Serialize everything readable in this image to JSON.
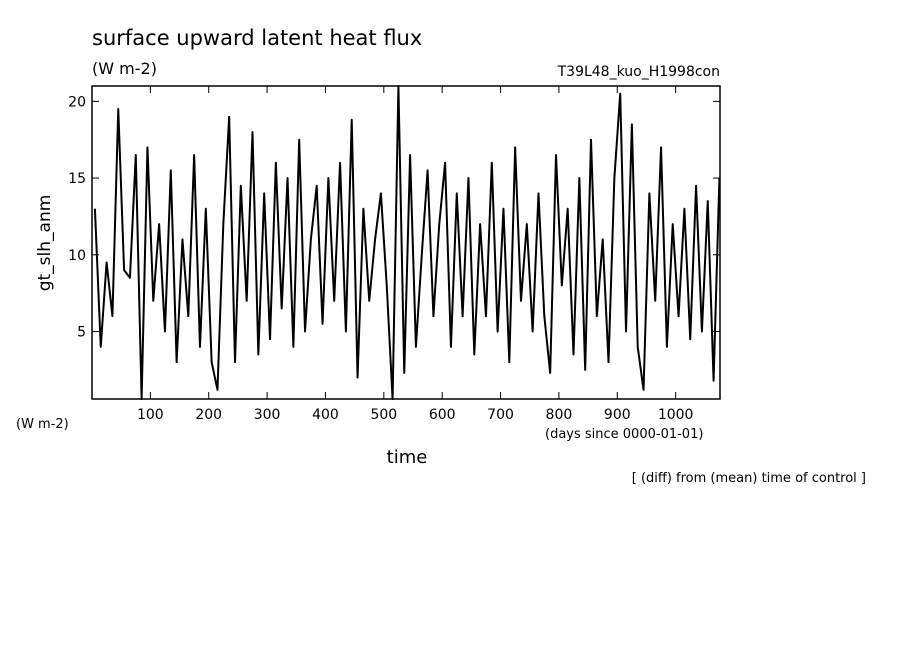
{
  "chart_data": {
    "type": "line",
    "title": "surface upward latent heat flux",
    "subtitle": "(W m-2)",
    "run_label": "T39L48_kuo_H1998con",
    "y_label": "gt_slh_anm",
    "y_units": "(W m-2)",
    "x_units": "(days since 0000-01-01)",
    "x_label": "time",
    "note": "[ (diff) from (mean) time of control ]",
    "x": [
      5,
      15,
      25,
      35,
      45,
      55,
      65,
      75,
      85,
      95,
      105,
      115,
      125,
      135,
      145,
      155,
      165,
      175,
      185,
      195,
      205,
      215,
      225,
      235,
      245,
      255,
      265,
      275,
      285,
      295,
      305,
      315,
      325,
      335,
      345,
      355,
      365,
      375,
      385,
      395,
      405,
      415,
      425,
      435,
      445,
      455,
      465,
      475,
      485,
      495,
      505,
      515,
      525,
      535,
      545,
      555,
      565,
      575,
      585,
      595,
      605,
      615,
      625,
      635,
      645,
      655,
      665,
      675,
      685,
      695,
      705,
      715,
      725,
      735,
      745,
      755,
      765,
      775,
      785,
      795,
      805,
      815,
      825,
      835,
      845,
      855,
      865,
      875,
      885,
      895,
      905,
      915,
      925,
      935,
      945,
      955,
      965,
      975,
      985,
      995,
      1005,
      1015,
      1025,
      1035,
      1045,
      1055,
      1065,
      1075
    ],
    "series": [
      {
        "color": "#000000",
        "values": [
          13,
          4,
          9.5,
          6,
          19.5,
          9,
          8.5,
          16.5,
          0.6,
          17,
          7,
          12,
          5,
          15.5,
          3,
          11,
          6,
          16.5,
          4,
          13,
          3,
          1.2,
          12,
          19,
          3,
          14.5,
          7,
          18,
          3.5,
          14,
          4.5,
          16,
          6.5,
          15,
          4,
          17.5,
          5,
          11,
          14.5,
          5.5,
          15,
          7,
          16,
          5,
          18.8,
          2,
          13,
          7,
          11,
          14,
          8,
          0.6,
          21,
          2.3,
          16.5,
          4,
          10,
          15.5,
          6,
          12,
          16,
          4,
          14,
          6,
          15,
          3.5,
          12,
          6,
          16,
          5,
          13,
          3,
          17,
          7,
          12,
          5,
          14,
          6,
          2.3,
          16.5,
          8,
          13,
          3.5,
          15,
          2.5,
          17.5,
          6,
          11,
          3,
          15,
          20.5,
          5,
          18.5,
          4,
          1.2,
          14,
          7,
          17,
          4,
          12,
          6,
          13,
          4.5,
          14.5,
          5,
          13.5,
          1.8,
          15
        ]
      }
    ],
    "xlim": [
      0,
      1076
    ],
    "ylim": [
      0.6,
      21
    ],
    "xticks": [
      100,
      200,
      300,
      400,
      500,
      600,
      700,
      800,
      900,
      1000
    ],
    "yticks": [
      5,
      10,
      15,
      20
    ]
  }
}
